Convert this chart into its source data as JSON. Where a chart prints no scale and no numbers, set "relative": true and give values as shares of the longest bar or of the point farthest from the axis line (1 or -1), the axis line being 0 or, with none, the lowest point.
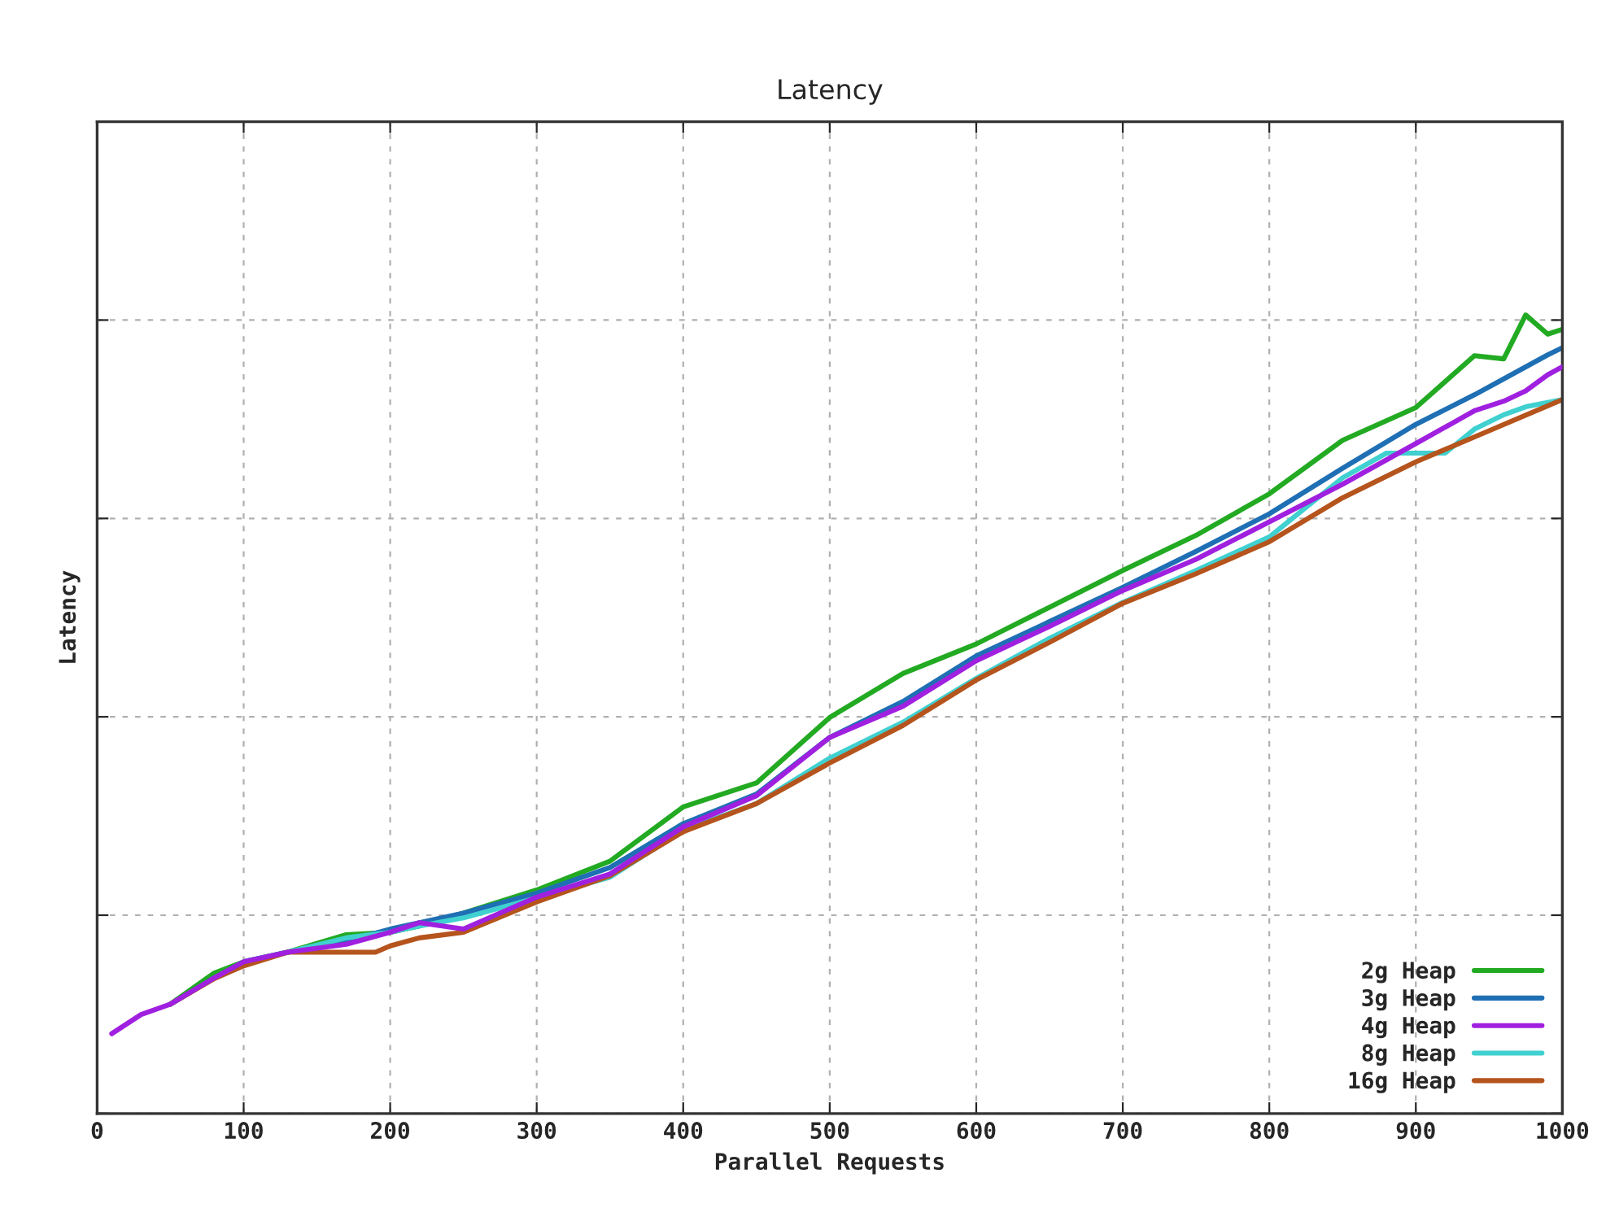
{
  "chart_data": {
    "type": "line",
    "title": "Latency",
    "xlabel": "Parallel Requests",
    "ylabel": "Latency",
    "relative": true,
    "xlim": [
      0,
      1000
    ],
    "xticks": [
      0,
      100,
      200,
      300,
      400,
      500,
      600,
      700,
      800,
      900,
      1000
    ],
    "grid": true,
    "legend": "bottom right",
    "line_style": "solid",
    "marker": "none",
    "series": [
      {
        "name": "2g Heap",
        "color": "#22aa22",
        "x": [
          50,
          80,
          100,
          130,
          170,
          200,
          220,
          250,
          300,
          350,
          400,
          450,
          500,
          550,
          600,
          650,
          700,
          750,
          800,
          850,
          900,
          940,
          960,
          975,
          990,
          1000
        ],
        "values": [
          0.137,
          0.176,
          0.19,
          0.202,
          0.224,
          0.227,
          0.235,
          0.251,
          0.28,
          0.316,
          0.384,
          0.414,
          0.496,
          0.551,
          0.588,
          0.634,
          0.68,
          0.724,
          0.776,
          0.843,
          0.884,
          0.949,
          0.945,
          1.0,
          0.976,
          0.982
        ]
      },
      {
        "name": "3g Heap",
        "color": "#1f6fb4",
        "x": [
          50,
          80,
          100,
          130,
          170,
          200,
          220,
          250,
          300,
          350,
          400,
          450,
          500,
          550,
          600,
          650,
          700,
          750,
          800,
          850,
          900,
          940,
          960,
          975,
          990,
          1000
        ],
        "values": [
          0.137,
          0.17,
          0.19,
          0.202,
          0.216,
          0.231,
          0.239,
          0.251,
          0.276,
          0.308,
          0.363,
          0.4,
          0.471,
          0.516,
          0.573,
          0.616,
          0.659,
          0.704,
          0.751,
          0.808,
          0.863,
          0.9,
          0.92,
          0.935,
          0.95,
          0.959
        ]
      },
      {
        "name": "4g Heap",
        "color": "#a020e0",
        "x": [
          10,
          30,
          50,
          80,
          100,
          130,
          170,
          200,
          220,
          250,
          300,
          350,
          400,
          450,
          500,
          550,
          600,
          650,
          700,
          750,
          800,
          850,
          900,
          940,
          960,
          975,
          990,
          1000
        ],
        "values": [
          0.1,
          0.124,
          0.137,
          0.17,
          0.19,
          0.202,
          0.212,
          0.227,
          0.239,
          0.231,
          0.271,
          0.3,
          0.359,
          0.398,
          0.471,
          0.51,
          0.567,
          0.61,
          0.655,
          0.694,
          0.741,
          0.788,
          0.839,
          0.88,
          0.892,
          0.905,
          0.925,
          0.935
        ]
      },
      {
        "name": "8g Heap",
        "color": "#40d0d0",
        "x": [
          100,
          130,
          170,
          200,
          220,
          250,
          300,
          350,
          400,
          450,
          500,
          550,
          600,
          650,
          700,
          750,
          800,
          850,
          880,
          920,
          940,
          960,
          975,
          1000
        ],
        "values": [
          0.19,
          0.202,
          0.22,
          0.227,
          0.235,
          0.245,
          0.27,
          0.296,
          0.355,
          0.388,
          0.445,
          0.49,
          0.545,
          0.595,
          0.64,
          0.68,
          0.722,
          0.796,
          0.827,
          0.827,
          0.857,
          0.875,
          0.885,
          0.894
        ]
      },
      {
        "name": "16g Heap",
        "color": "#b5541c",
        "x": [
          50,
          80,
          100,
          130,
          170,
          190,
          200,
          220,
          250,
          300,
          350,
          400,
          450,
          500,
          550,
          600,
          650,
          700,
          750,
          800,
          850,
          900,
          950,
          1000
        ],
        "values": [
          0.137,
          0.169,
          0.185,
          0.202,
          0.202,
          0.202,
          0.21,
          0.22,
          0.227,
          0.265,
          0.298,
          0.353,
          0.388,
          0.439,
          0.486,
          0.543,
          0.59,
          0.639,
          0.676,
          0.716,
          0.771,
          0.816,
          0.855,
          0.894
        ]
      }
    ]
  }
}
